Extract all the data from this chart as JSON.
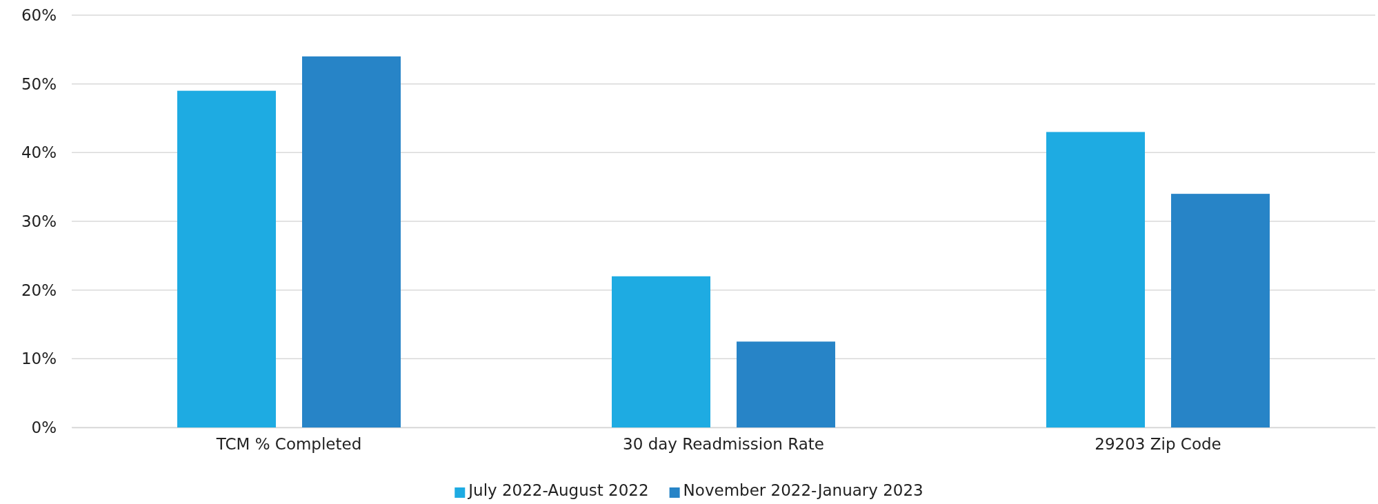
{
  "chart_data": {
    "type": "bar",
    "categories": [
      "TCM % Completed",
      "30 day Readmission Rate",
      "29203 Zip Code"
    ],
    "series": [
      {
        "name": "July 2022-August 2022",
        "color": "#1eabe2",
        "values": [
          49,
          22,
          43
        ]
      },
      {
        "name": "November 2022-January 2023",
        "color": "#2784c7",
        "values": [
          54,
          12.5,
          34
        ]
      }
    ],
    "ylim": [
      0,
      60
    ],
    "yticks": [
      {
        "value": 0,
        "label": "0%"
      },
      {
        "value": 10,
        "label": "10%"
      },
      {
        "value": 20,
        "label": "20%"
      },
      {
        "value": 30,
        "label": "30%"
      },
      {
        "value": 40,
        "label": "40%"
      },
      {
        "value": 50,
        "label": "50%"
      },
      {
        "value": 60,
        "label": "60%"
      }
    ],
    "grid": "y",
    "legend": "bottom"
  }
}
